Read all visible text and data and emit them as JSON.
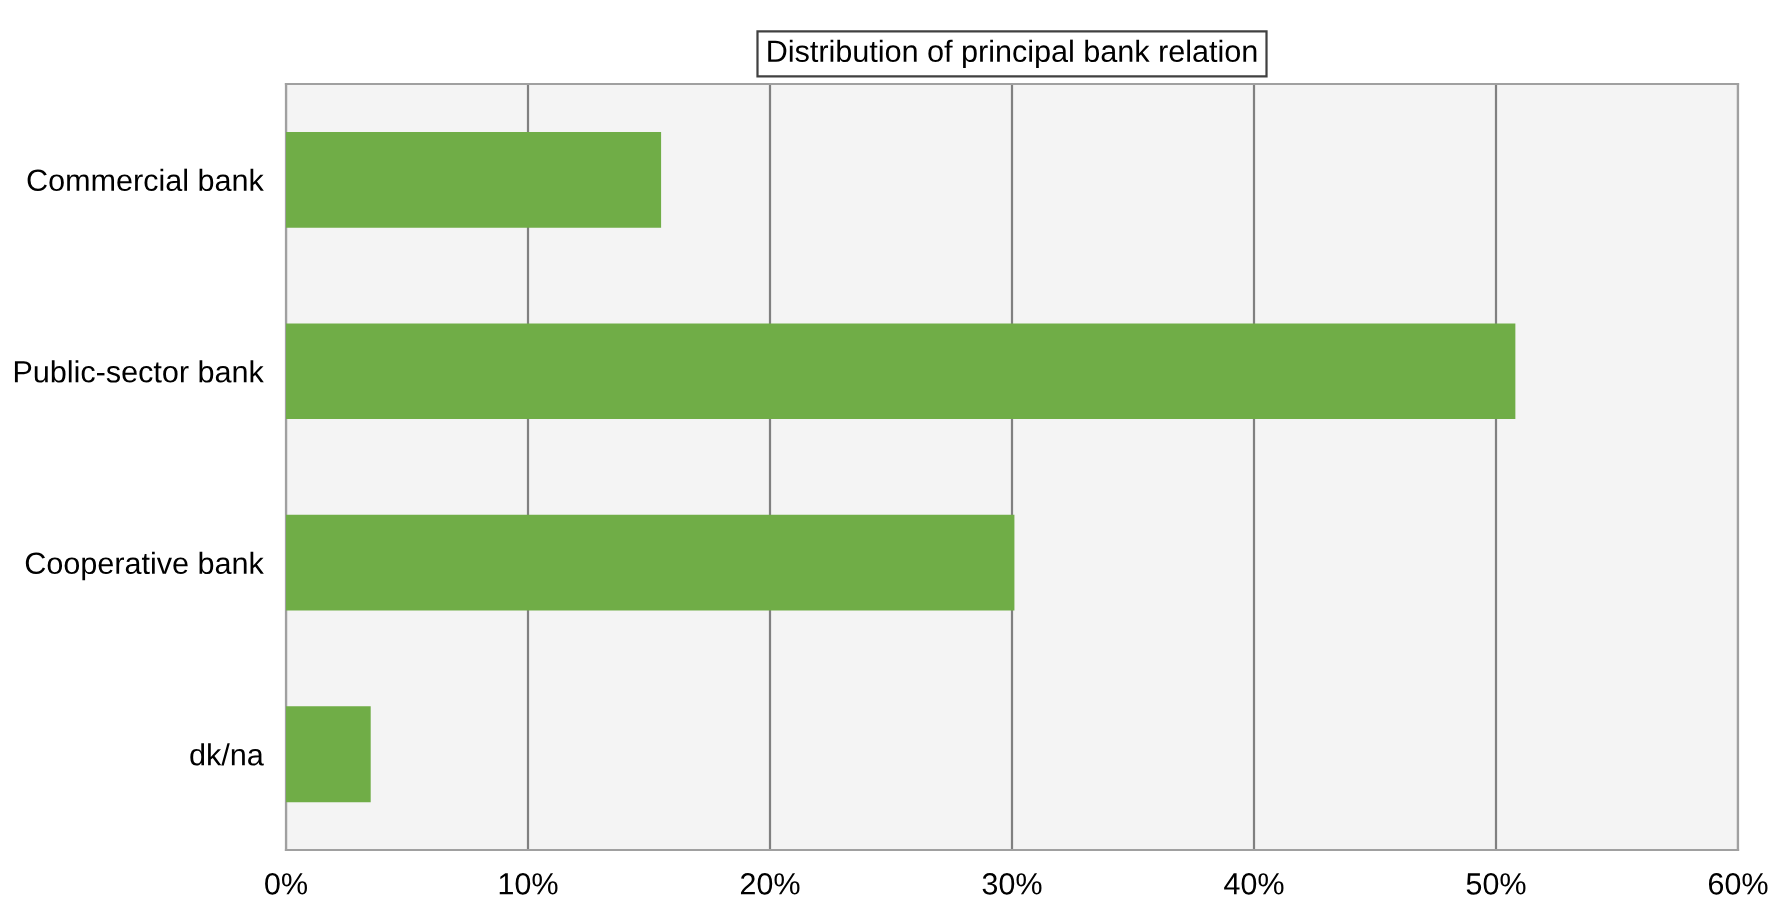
{
  "chart_data": {
    "type": "bar",
    "orientation": "horizontal",
    "title": "Distribution of principal bank relation",
    "categories": [
      "Commercial bank",
      "Public-sector bank",
      "Cooperative bank",
      "dk/na"
    ],
    "values": [
      15.5,
      50.8,
      30.1,
      3.5
    ],
    "color": "#70ad47",
    "xlim": [
      0,
      60
    ],
    "xticks": [
      {
        "value": 0,
        "label": "0%"
      },
      {
        "value": 10,
        "label": "10%"
      },
      {
        "value": 20,
        "label": "20%"
      },
      {
        "value": 30,
        "label": "30%"
      },
      {
        "value": 40,
        "label": "40%"
      },
      {
        "value": 50,
        "label": "50%"
      },
      {
        "value": 60,
        "label": "60%"
      }
    ],
    "grid": "x",
    "legend": false
  }
}
